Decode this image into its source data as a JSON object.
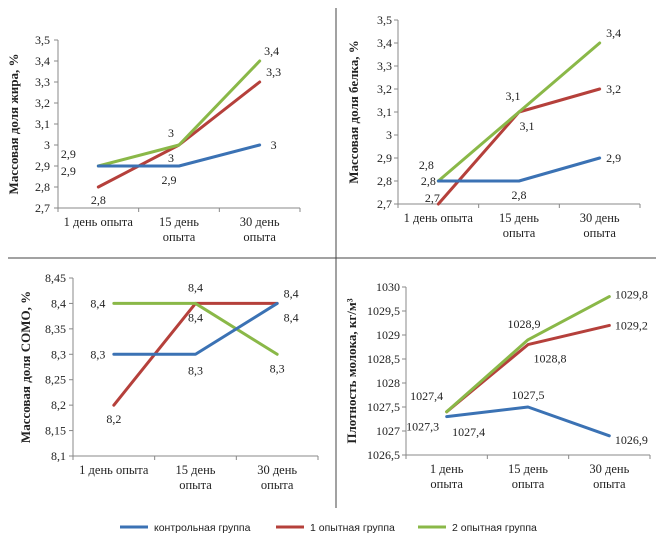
{
  "colors": {
    "control": "#3b72b4",
    "group1": "#b5403b",
    "group2": "#8ab848",
    "divider": "#444444"
  },
  "legend": [
    {
      "key": "control",
      "label": "контрольная группа"
    },
    {
      "key": "group1",
      "label": "1 опытная группа"
    },
    {
      "key": "group2",
      "label": "2 опытная группа"
    }
  ],
  "chart_data": [
    {
      "type": "line",
      "ylabel": "Массовая доля жира, %",
      "ylim": [
        2.7,
        3.5
      ],
      "yticks": [
        "2,7",
        "2,8",
        "2,9",
        "3",
        "3,1",
        "3,2",
        "3,3",
        "3,4",
        "3,5"
      ],
      "categories": [
        [
          "1 день опыта"
        ],
        [
          "15 день",
          "опыта"
        ],
        [
          "30 день",
          "опыта"
        ]
      ],
      "series": [
        {
          "key": "control",
          "name": "контрольная группа",
          "values": [
            2.9,
            2.9,
            3.0
          ],
          "labels": [
            "2,9",
            "2,9",
            "3"
          ]
        },
        {
          "key": "group1",
          "name": "1 опытная группа",
          "values": [
            2.8,
            3.0,
            3.3
          ],
          "labels": [
            "2,8",
            "3",
            "3,3"
          ]
        },
        {
          "key": "group2",
          "name": "2 опытная группа",
          "values": [
            2.9,
            3.0,
            3.4
          ],
          "labels": [
            "2,9",
            "3",
            "3,4"
          ]
        }
      ]
    },
    {
      "type": "line",
      "ylabel": "Массовая доля белка, %",
      "ylim": [
        2.7,
        3.5
      ],
      "yticks": [
        "2,7",
        "2,8",
        "2,9",
        "3",
        "3,1",
        "3,2",
        "3,3",
        "3,4",
        "3,5"
      ],
      "categories": [
        [
          "1 день опыта"
        ],
        [
          "15 день",
          "опыта"
        ],
        [
          "30 день",
          "опыта"
        ]
      ],
      "series": [
        {
          "key": "control",
          "name": "контрольная группа",
          "values": [
            2.8,
            2.8,
            2.9
          ],
          "labels": [
            "2,8",
            "2,8",
            "2,9"
          ]
        },
        {
          "key": "group1",
          "name": "1 опытная группа",
          "values": [
            2.7,
            3.1,
            3.2
          ],
          "labels": [
            "2,7",
            "3,1",
            "3,2"
          ]
        },
        {
          "key": "group2",
          "name": "2 опытная группа",
          "values": [
            2.8,
            3.1,
            3.4
          ],
          "labels": [
            "2,8",
            "3,1",
            "3,4"
          ]
        }
      ]
    },
    {
      "type": "line",
      "ylabel": "Массовая доля СОМО, %",
      "ylim": [
        8.1,
        8.45
      ],
      "yticks": [
        "8,1",
        "8,15",
        "8,2",
        "8,25",
        "8,3",
        "8,35",
        "8,4",
        "8,45"
      ],
      "categories": [
        [
          "1 день опыта"
        ],
        [
          "15 день",
          "опыта"
        ],
        [
          "30 день",
          "опыта"
        ]
      ],
      "series": [
        {
          "key": "control",
          "name": "контрольная группа",
          "values": [
            8.3,
            8.3,
            8.4
          ],
          "labels": [
            "8,3",
            "8,3",
            "8,4"
          ]
        },
        {
          "key": "group1",
          "name": "1 опытная группа",
          "values": [
            8.2,
            8.4,
            8.4
          ],
          "labels": [
            "8,2",
            "8,4",
            "8,4"
          ]
        },
        {
          "key": "group2",
          "name": "2 опытная группа",
          "values": [
            8.4,
            8.4,
            8.3
          ],
          "labels": [
            "8,4",
            "8,4",
            "8,3"
          ]
        }
      ]
    },
    {
      "type": "line",
      "ylabel": "Плотность молока, кг/м³",
      "ylim": [
        1026.5,
        1030
      ],
      "yticks": [
        "1026,5",
        "1027",
        "1027,5",
        "1028",
        "1028,5",
        "1029",
        "1029,5",
        "1030"
      ],
      "categories": [
        [
          "1 день",
          "опыта"
        ],
        [
          "15 день",
          "опыта"
        ],
        [
          "30 день",
          "опыта"
        ]
      ],
      "series": [
        {
          "key": "control",
          "name": "контрольная группа",
          "values": [
            1027.3,
            1027.5,
            1026.9
          ],
          "labels": [
            "1027,3",
            "1027,5",
            "1026,9"
          ]
        },
        {
          "key": "group1",
          "name": "1 опытная группа",
          "values": [
            1027.4,
            1028.8,
            1029.2
          ],
          "labels": [
            "1027,4",
            "1028,8",
            "1029,2"
          ]
        },
        {
          "key": "group2",
          "name": "2 опытная группа",
          "values": [
            1027.4,
            1028.9,
            1029.8
          ],
          "labels": [
            "1027,4",
            "1028,9",
            "1029,8"
          ]
        }
      ]
    }
  ]
}
